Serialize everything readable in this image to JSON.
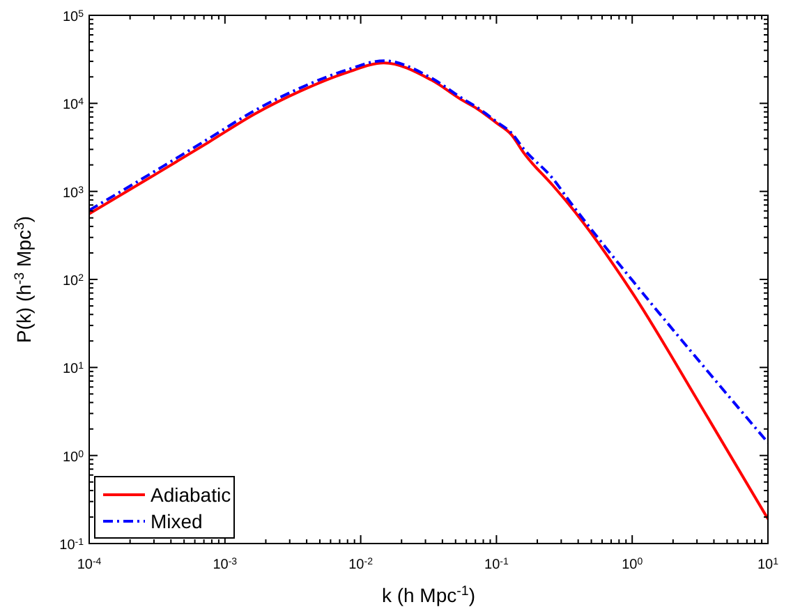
{
  "chart_data": {
    "type": "line",
    "xlabel": "k (h Mpc$^{-1}$)",
    "ylabel": "P(k) (h$^{-3}$ Mpc$^{3}$)",
    "log": "xy",
    "xlim": [
      0.0001,
      10
    ],
    "ylim": [
      0.1,
      100000
    ],
    "xticks": [
      {
        "value": 0.0001,
        "label": "10$^{-4}$"
      },
      {
        "value": 0.001,
        "label": "10$^{-3}$"
      },
      {
        "value": 0.01,
        "label": "10$^{-2}$"
      },
      {
        "value": 0.1,
        "label": "10$^{-1}$"
      },
      {
        "value": 1,
        "label": "10$^{0}$"
      },
      {
        "value": 10,
        "label": "10$^{1}$"
      }
    ],
    "yticks": [
      {
        "value": 0.1,
        "label": "10$^{-1}$"
      },
      {
        "value": 1,
        "label": "10$^{0}$"
      },
      {
        "value": 10,
        "label": "10$^{1}$"
      },
      {
        "value": 100,
        "label": "10$^{2}$"
      },
      {
        "value": 1000,
        "label": "10$^{3}$"
      },
      {
        "value": 10000,
        "label": "10$^{4}$"
      },
      {
        "value": 100000,
        "label": "10$^{5}$"
      }
    ],
    "grid": false,
    "legend": "bottom left",
    "marker": "none",
    "series": [
      {
        "name": "Adiabatic",
        "color": "#ff0000",
        "line_style": "solid",
        "x": [
          0.0001,
          0.00035,
          0.00076,
          0.00166,
          0.0036,
          0.0079,
          0.0148,
          0.033,
          0.057,
          0.072,
          0.1,
          0.129,
          0.16,
          0.26,
          0.34,
          1,
          3.16,
          10
        ],
        "values": [
          556,
          1760,
          3630,
          7590,
          13800,
          22400,
          28800,
          18500,
          10700,
          8700,
          6000,
          4400,
          2700,
          1170,
          720,
          71,
          3.8,
          0.19
        ]
      },
      {
        "name": "Mixed",
        "color": "#0000ff",
        "line_style": "dashed",
        "x": [
          0.0001,
          0.00035,
          0.00076,
          0.00166,
          0.0036,
          0.0079,
          0.0148,
          0.033,
          0.057,
          0.072,
          0.1,
          0.129,
          0.16,
          0.26,
          0.34,
          1,
          3.16,
          10
        ],
        "values": [
          610,
          1930,
          3980,
          8300,
          15000,
          24000,
          30500,
          19500,
          11200,
          9000,
          6200,
          4600,
          3000,
          1400,
          800,
          98,
          11.5,
          1.4
        ]
      }
    ]
  }
}
